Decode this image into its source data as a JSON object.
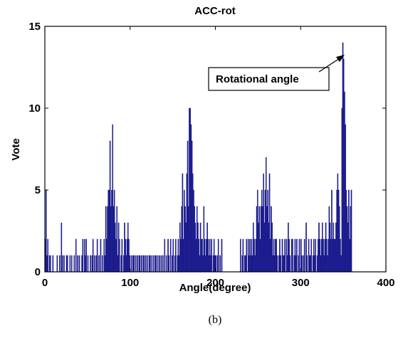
{
  "chart_data": {
    "type": "histogram",
    "title": "ACC-rot",
    "xlabel": "Angle(degree)",
    "ylabel": "Vote",
    "caption": "(b)",
    "annotation": "Rotational angle",
    "color": "#1c1c8e",
    "xlim": [
      0,
      400
    ],
    "xticks": [
      0,
      100,
      200,
      300,
      400
    ],
    "ylim": [
      0,
      15
    ],
    "yticks": [
      0,
      5,
      10,
      15
    ],
    "bins": [
      0,
      1,
      2,
      3,
      4,
      5,
      6,
      7,
      8,
      9,
      10,
      11,
      12,
      13,
      14,
      15,
      16,
      17,
      18,
      19,
      20,
      21,
      22,
      23,
      24,
      25,
      26,
      27,
      28,
      29,
      30,
      31,
      32,
      33,
      34,
      35,
      36,
      37,
      38,
      39,
      40,
      41,
      42,
      43,
      44,
      45,
      46,
      47,
      48,
      49,
      50,
      51,
      52,
      53,
      54,
      55,
      56,
      57,
      58,
      59,
      60,
      61,
      62,
      63,
      64,
      65,
      66,
      67,
      68,
      69,
      70,
      71,
      72,
      73,
      74,
      75,
      76,
      77,
      78,
      79,
      80,
      81,
      82,
      83,
      84,
      85,
      86,
      87,
      88,
      89,
      90,
      91,
      92,
      93,
      94,
      95,
      96,
      97,
      98,
      99,
      100,
      101,
      102,
      103,
      104,
      105,
      106,
      107,
      108,
      109,
      110,
      111,
      112,
      113,
      114,
      115,
      116,
      117,
      118,
      119,
      120,
      121,
      122,
      123,
      124,
      125,
      126,
      127,
      128,
      129,
      130,
      131,
      132,
      133,
      134,
      135,
      136,
      137,
      138,
      139,
      140,
      141,
      142,
      143,
      144,
      145,
      146,
      147,
      148,
      149,
      150,
      151,
      152,
      153,
      154,
      155,
      156,
      157,
      158,
      159,
      160,
      161,
      162,
      163,
      164,
      165,
      166,
      167,
      168,
      169,
      170,
      171,
      172,
      173,
      174,
      175,
      176,
      177,
      178,
      179,
      180,
      181,
      182,
      183,
      184,
      185,
      186,
      187,
      188,
      189,
      190,
      191,
      192,
      193,
      194,
      195,
      196,
      197,
      198,
      199,
      200,
      201,
      202,
      203,
      204,
      205,
      206,
      207,
      208,
      209,
      210,
      211,
      212,
      213,
      214,
      215,
      216,
      217,
      218,
      219,
      220,
      221,
      222,
      223,
      224,
      225,
      226,
      227,
      228,
      229,
      230,
      231,
      232,
      233,
      234,
      235,
      236,
      237,
      238,
      239,
      240,
      241,
      242,
      243,
      244,
      245,
      246,
      247,
      248,
      249,
      250,
      251,
      252,
      253,
      254,
      255,
      256,
      257,
      258,
      259,
      260,
      261,
      262,
      263,
      264,
      265,
      266,
      267,
      268,
      269,
      270,
      271,
      272,
      273,
      274,
      275,
      276,
      277,
      278,
      279,
      280,
      281,
      282,
      283,
      284,
      285,
      286,
      287,
      288,
      289,
      290,
      291,
      292,
      293,
      294,
      295,
      296,
      297,
      298,
      299,
      300,
      301,
      302,
      303,
      304,
      305,
      306,
      307,
      308,
      309,
      310,
      311,
      312,
      313,
      314,
      315,
      316,
      317,
      318,
      319,
      320,
      321,
      322,
      323,
      324,
      325,
      326,
      327,
      328,
      329,
      330,
      331,
      332,
      333,
      334,
      335,
      336,
      337,
      338,
      339,
      340,
      341,
      342,
      343,
      344,
      345,
      346,
      347,
      348,
      349,
      350,
      351,
      352,
      353,
      354,
      355,
      356,
      357,
      358,
      359,
      360
    ],
    "values": [
      2,
      5,
      1,
      2,
      0,
      1,
      1,
      0,
      0,
      1,
      0,
      0,
      0,
      0,
      1,
      0,
      0,
      1,
      0,
      3,
      1,
      0,
      1,
      0,
      0,
      1,
      1,
      0,
      0,
      1,
      0,
      1,
      0,
      0,
      1,
      0,
      2,
      0,
      1,
      0,
      1,
      0,
      0,
      1,
      2,
      0,
      2,
      1,
      2,
      0,
      1,
      0,
      0,
      1,
      0,
      1,
      2,
      0,
      1,
      0,
      1,
      2,
      0,
      1,
      0,
      2,
      0,
      1,
      0,
      2,
      1,
      4,
      2,
      4,
      5,
      5,
      8,
      4,
      5,
      9,
      4,
      5,
      3,
      2,
      4,
      1,
      3,
      2,
      0,
      1,
      2,
      0,
      1,
      3,
      2,
      1,
      2,
      3,
      2,
      1,
      0,
      1,
      0,
      1,
      1,
      0,
      1,
      0,
      1,
      0,
      1,
      1,
      0,
      1,
      0,
      1,
      1,
      0,
      1,
      0,
      1,
      0,
      1,
      1,
      0,
      1,
      0,
      1,
      0,
      1,
      1,
      0,
      1,
      0,
      1,
      0,
      1,
      0,
      1,
      0,
      2,
      0,
      1,
      0,
      2,
      1,
      0,
      2,
      0,
      1,
      2,
      0,
      1,
      2,
      0,
      1,
      2,
      1,
      3,
      2,
      4,
      6,
      2,
      5,
      4,
      3,
      6,
      8,
      4,
      10,
      10,
      9,
      8,
      6,
      5,
      4,
      3,
      2,
      4,
      3,
      2,
      1,
      3,
      2,
      2,
      1,
      4,
      2,
      1,
      2,
      3,
      2,
      1,
      2,
      1,
      2,
      0,
      1,
      2,
      1,
      1,
      0,
      1,
      2,
      0,
      1,
      0,
      2,
      0,
      0,
      0,
      0,
      0,
      0,
      0,
      0,
      0,
      0,
      0,
      0,
      0,
      0,
      0,
      0,
      0,
      0,
      0,
      0,
      0,
      2,
      0,
      1,
      2,
      0,
      1,
      1,
      2,
      0,
      2,
      1,
      2,
      1,
      2,
      1,
      3,
      2,
      1,
      2,
      4,
      5,
      3,
      4,
      2,
      4,
      5,
      4,
      6,
      3,
      5,
      7,
      4,
      5,
      3,
      6,
      2,
      4,
      3,
      1,
      2,
      1,
      2,
      2,
      1,
      0,
      1,
      2,
      1,
      0,
      2,
      1,
      1,
      2,
      0,
      2,
      1,
      3,
      2,
      1,
      0,
      2,
      2,
      0,
      1,
      2,
      1,
      2,
      0,
      1,
      2,
      0,
      2,
      1,
      0,
      1,
      2,
      0,
      3,
      1,
      0,
      2,
      1,
      1,
      2,
      0,
      1,
      2,
      1,
      2,
      0,
      1,
      2,
      3,
      2,
      1,
      2,
      3,
      2,
      1,
      2,
      3,
      2,
      1,
      2,
      4,
      3,
      2,
      5,
      2,
      3,
      2,
      2,
      3,
      5,
      6,
      5,
      4,
      2,
      1,
      10,
      14,
      13,
      11,
      9,
      5,
      4,
      3,
      5,
      2,
      4,
      5
    ]
  }
}
